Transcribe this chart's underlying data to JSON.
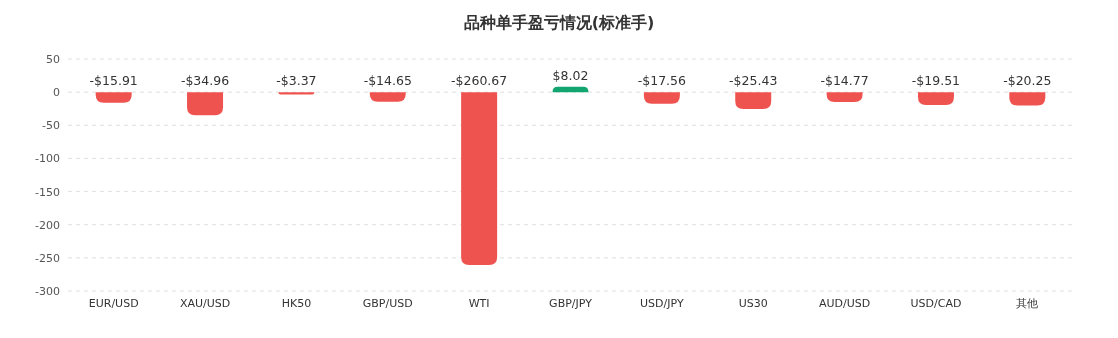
{
  "chart_data": {
    "type": "bar",
    "title": "品种单手盈亏情况(标准手)",
    "categories": [
      "EUR/USD",
      "XAU/USD",
      "HK50",
      "GBP/USD",
      "WTI",
      "GBP/JPY",
      "USD/JPY",
      "US30",
      "AUD/USD",
      "USD/CAD",
      "其他"
    ],
    "values": [
      -15.91,
      -34.96,
      -3.37,
      -14.65,
      -260.67,
      8.02,
      -17.56,
      -25.43,
      -14.77,
      -19.51,
      -20.25
    ],
    "colors": [
      "#ef5350",
      "#ef5350",
      "#ef5350",
      "#ef5350",
      "#ef5350",
      "#12a56f",
      "#ef5350",
      "#ef5350",
      "#ef5350",
      "#ef5350",
      "#ef5350"
    ],
    "value_labels": [
      "-$15.91",
      "-$34.96",
      "-$3.37",
      "-$14.65",
      "-$260.67",
      "$8.02",
      "-$17.56",
      "-$25.43",
      "-$14.77",
      "-$19.51",
      "-$20.25"
    ],
    "ylim": [
      -300,
      50
    ],
    "yticks": [
      -300,
      -250,
      -200,
      -150,
      -100,
      -50,
      0,
      50
    ],
    "grid": "y"
  }
}
